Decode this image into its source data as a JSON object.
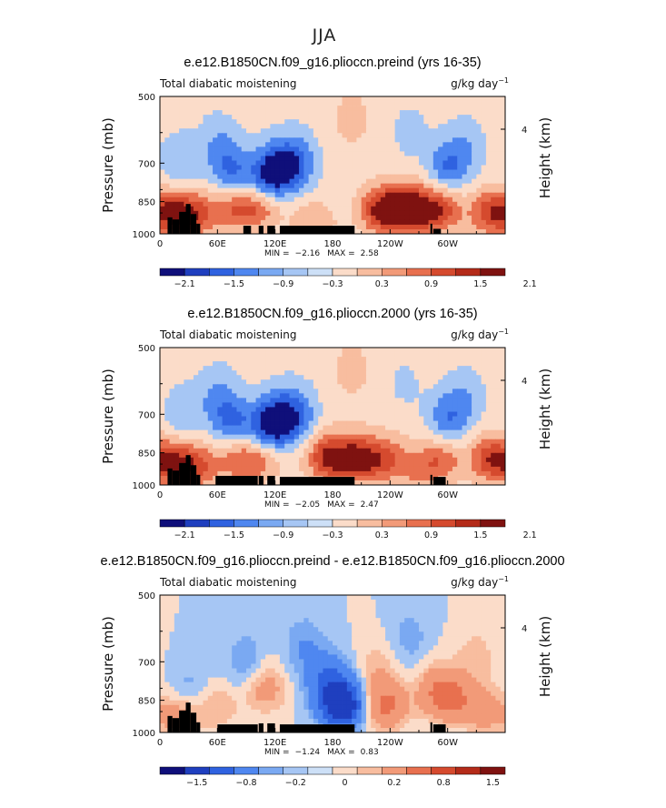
{
  "figure_title": "JJA",
  "colors": {
    "palette": [
      "#0f0f7a",
      "#1f3fbf",
      "#2f62e0",
      "#4f87f0",
      "#7aa9f2",
      "#a6c6f4",
      "#cde0f7",
      "#fbdcc9",
      "#f8bd9f",
      "#f29a78",
      "#e8704f",
      "#d54a2e",
      "#b42b19",
      "#7f1210"
    ],
    "terrain": "#000000"
  },
  "chart_data": [
    {
      "type": "heatmap",
      "title": "e.e12.B1850CN.f09_g16.plioccn.preind (yrs 16-35)",
      "left_label": "Total diabatic moistening",
      "units": "g/kg day",
      "units_exp": "−1",
      "ylabel": "Pressure (mb)",
      "y2label": "Height (km)",
      "yticks": [
        "500",
        "700",
        "850",
        "1000"
      ],
      "y2ticks": [
        "4"
      ],
      "xticks": [
        "0",
        "60E",
        "120E",
        "180",
        "120W",
        "60W"
      ],
      "min_label": "MIN =",
      "min_value": "−2.16",
      "max_label": "MAX =",
      "max_value": "2.58",
      "colorbar_labels": [
        "−2.1",
        "−1.5",
        "−0.9",
        "−0.3",
        "0.3",
        "0.9",
        "1.5",
        "2.1"
      ],
      "levels": [
        -2.1,
        -1.5,
        -0.9,
        -0.3,
        0.3,
        0.9,
        1.5,
        2.1
      ],
      "features": [
        {
          "lon": 110,
          "p": 760,
          "v": -1.6
        },
        {
          "lon": 125,
          "p": 720,
          "v": -1.8
        },
        {
          "lon": 145,
          "p": 700,
          "v": -1.3
        },
        {
          "lon": 75,
          "p": 730,
          "v": -1.4
        },
        {
          "lon": 60,
          "p": 640,
          "v": -0.8
        },
        {
          "lon": 20,
          "p": 700,
          "v": -0.9
        },
        {
          "lon": 105,
          "p": 870,
          "v": 1.3
        },
        {
          "lon": 80,
          "p": 880,
          "v": 1.4
        },
        {
          "lon": 40,
          "p": 910,
          "v": 1.6
        },
        {
          "lon": 15,
          "p": 900,
          "v": 2.0
        },
        {
          "lon": 160,
          "p": 950,
          "v": 0.9
        },
        {
          "lon": 230,
          "p": 890,
          "v": 2.2
        },
        {
          "lon": 255,
          "p": 880,
          "v": 2.3
        },
        {
          "lon": 270,
          "p": 900,
          "v": 1.6
        },
        {
          "lon": 300,
          "p": 720,
          "v": -1.5
        },
        {
          "lon": 295,
          "p": 880,
          "v": 1.7
        },
        {
          "lon": 320,
          "p": 650,
          "v": -0.7
        },
        {
          "lon": 345,
          "p": 900,
          "v": 1.9
        },
        {
          "lon": 200,
          "p": 560,
          "v": 0.5
        },
        {
          "lon": 260,
          "p": 600,
          "v": -0.5
        }
      ],
      "terrain": [
        {
          "lon": [
            8,
            13
          ],
          "p": 920
        },
        {
          "lon": [
            13,
            20
          ],
          "p": 930
        },
        {
          "lon": [
            20,
            27
          ],
          "p": 895
        },
        {
          "lon": [
            27,
            32
          ],
          "p": 860
        },
        {
          "lon": [
            32,
            38
          ],
          "p": 905
        },
        {
          "lon": [
            38,
            42
          ],
          "p": 950
        },
        {
          "lon": [
            87,
            95
          ],
          "p": 960
        },
        {
          "lon": [
            103,
            108
          ],
          "p": 960
        },
        {
          "lon": [
            112,
            120
          ],
          "p": 960
        },
        {
          "lon": [
            125,
            203
          ],
          "p": 960
        },
        {
          "lon": [
            282,
            284
          ],
          "p": 950
        },
        {
          "lon": [
            285,
            293
          ],
          "p": 975
        }
      ]
    },
    {
      "type": "heatmap",
      "title": "e.e12.B1850CN.f09_g16.plioccn.2000 (yrs 16-35)",
      "left_label": "Total diabatic moistening",
      "units": "g/kg day",
      "units_exp": "−1",
      "ylabel": "Pressure (mb)",
      "y2label": "Height (km)",
      "yticks": [
        "500",
        "700",
        "850",
        "1000"
      ],
      "y2ticks": [
        "4"
      ],
      "xticks": [
        "0",
        "60E",
        "120E",
        "180",
        "120W",
        "60W"
      ],
      "min_label": "MIN =",
      "min_value": "−2.05",
      "max_label": "MAX =",
      "max_value": "2.47",
      "colorbar_labels": [
        "−2.1",
        "−1.5",
        "−0.9",
        "−0.3",
        "0.3",
        "0.9",
        "1.5",
        "2.1"
      ],
      "levels": [
        -2.1,
        -1.5,
        -0.9,
        -0.3,
        0.3,
        0.9,
        1.5,
        2.1
      ],
      "features": [
        {
          "lon": 110,
          "p": 760,
          "v": -1.6
        },
        {
          "lon": 125,
          "p": 720,
          "v": -1.9
        },
        {
          "lon": 145,
          "p": 700,
          "v": -1.2
        },
        {
          "lon": 75,
          "p": 730,
          "v": -1.5
        },
        {
          "lon": 60,
          "p": 640,
          "v": -0.8
        },
        {
          "lon": 25,
          "p": 700,
          "v": -0.8
        },
        {
          "lon": 105,
          "p": 870,
          "v": 1.3
        },
        {
          "lon": 80,
          "p": 880,
          "v": 1.2
        },
        {
          "lon": 40,
          "p": 910,
          "v": 1.5
        },
        {
          "lon": 15,
          "p": 900,
          "v": 1.9
        },
        {
          "lon": 175,
          "p": 870,
          "v": 2.2
        },
        {
          "lon": 205,
          "p": 880,
          "v": 2.4
        },
        {
          "lon": 235,
          "p": 880,
          "v": 1.6
        },
        {
          "lon": 270,
          "p": 920,
          "v": 1.0
        },
        {
          "lon": 300,
          "p": 720,
          "v": -1.4
        },
        {
          "lon": 295,
          "p": 880,
          "v": 1.3
        },
        {
          "lon": 320,
          "p": 650,
          "v": -0.7
        },
        {
          "lon": 345,
          "p": 880,
          "v": 2.0
        },
        {
          "lon": 200,
          "p": 560,
          "v": 0.5
        },
        {
          "lon": 255,
          "p": 600,
          "v": -0.4
        }
      ],
      "terrain": [
        {
          "lon": [
            8,
            13
          ],
          "p": 920
        },
        {
          "lon": [
            13,
            20
          ],
          "p": 930
        },
        {
          "lon": [
            20,
            27
          ],
          "p": 895
        },
        {
          "lon": [
            27,
            32
          ],
          "p": 860
        },
        {
          "lon": [
            32,
            38
          ],
          "p": 905
        },
        {
          "lon": [
            38,
            42
          ],
          "p": 950
        },
        {
          "lon": [
            58,
            102
          ],
          "p": 955
        },
        {
          "lon": [
            103,
            108
          ],
          "p": 955
        },
        {
          "lon": [
            112,
            120
          ],
          "p": 955
        },
        {
          "lon": [
            125,
            203
          ],
          "p": 960
        },
        {
          "lon": [
            282,
            284
          ],
          "p": 950
        },
        {
          "lon": [
            285,
            298
          ],
          "p": 960
        }
      ]
    },
    {
      "type": "heatmap",
      "title": "e.e12.B1850CN.f09_g16.plioccn.preind - e.e12.B1850CN.f09_g16.plioccn.2000",
      "left_label": "Total diabatic moistening",
      "units": "g/kg day",
      "units_exp": "−1",
      "ylabel": "Pressure (mb)",
      "y2label": "Height (km)",
      "yticks": [
        "500",
        "700",
        "850",
        "1000"
      ],
      "y2ticks": [
        "4"
      ],
      "xticks": [
        "0",
        "60E",
        "120E",
        "180",
        "120W",
        "60W"
      ],
      "min_label": "MIN =",
      "min_value": "−1.24",
      "max_label": "MAX =",
      "max_value": "0.83",
      "colorbar_labels": [
        "−1.5",
        "−0.8",
        "−0.2",
        "0",
        "0.2",
        "0.8",
        "1.5"
      ],
      "levels": [
        -1.5,
        -0.8,
        -0.5,
        -0.2,
        -0.1,
        0,
        0.1,
        0.2,
        0.5,
        0.8,
        1.2,
        1.5
      ],
      "features": [
        {
          "lon": 190,
          "p": 870,
          "v": -1.2
        },
        {
          "lon": 175,
          "p": 780,
          "v": -0.5
        },
        {
          "lon": 150,
          "p": 650,
          "v": -0.2
        },
        {
          "lon": 110,
          "p": 800,
          "v": 0.3
        },
        {
          "lon": 90,
          "p": 700,
          "v": -0.2
        },
        {
          "lon": 30,
          "p": 800,
          "v": -0.15
        },
        {
          "lon": 60,
          "p": 880,
          "v": 0.2
        },
        {
          "lon": 20,
          "p": 920,
          "v": 0.3
        },
        {
          "lon": 235,
          "p": 870,
          "v": 0.6
        },
        {
          "lon": 225,
          "p": 720,
          "v": 0.15
        },
        {
          "lon": 260,
          "p": 620,
          "v": -0.15
        },
        {
          "lon": 290,
          "p": 820,
          "v": 0.5
        },
        {
          "lon": 310,
          "p": 850,
          "v": 0.4
        },
        {
          "lon": 340,
          "p": 900,
          "v": 0.3
        },
        {
          "lon": 330,
          "p": 680,
          "v": 0.15
        }
      ],
      "terrain": [
        {
          "lon": [
            8,
            13
          ],
          "p": 920
        },
        {
          "lon": [
            13,
            20
          ],
          "p": 930
        },
        {
          "lon": [
            20,
            27
          ],
          "p": 895
        },
        {
          "lon": [
            27,
            32
          ],
          "p": 860
        },
        {
          "lon": [
            32,
            38
          ],
          "p": 905
        },
        {
          "lon": [
            38,
            42
          ],
          "p": 950
        },
        {
          "lon": [
            60,
            102
          ],
          "p": 960
        },
        {
          "lon": [
            103,
            108
          ],
          "p": 955
        },
        {
          "lon": [
            112,
            120
          ],
          "p": 955
        },
        {
          "lon": [
            125,
            203
          ],
          "p": 960
        },
        {
          "lon": [
            282,
            284
          ],
          "p": 950
        },
        {
          "lon": [
            285,
            298
          ],
          "p": 960
        }
      ]
    }
  ]
}
